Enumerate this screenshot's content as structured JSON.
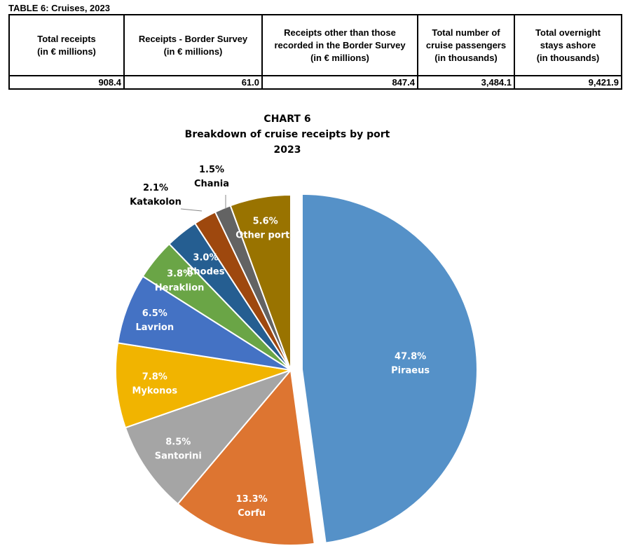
{
  "table": {
    "title": "TABLE 6: Cruises, 2023",
    "columns": [
      "Total receipts\n(in € millions)",
      "Receipts - Border Survey\n(in € millions)",
      "Receipts other than those\nrecorded in the Border Survey\n(in € millions)",
      "Total number of\ncruise passengers\n(in thousands)",
      "Total overnight\nstays ashore\n(in thousands)"
    ],
    "values": [
      "908.4",
      "61.0",
      "847.4",
      "3,484.1",
      "9,421.9"
    ]
  },
  "chart_data": {
    "type": "pie",
    "title": "CHART 6",
    "subtitle": "Breakdown of cruise receipts by port",
    "year": "2023",
    "slices": [
      {
        "label": "Piraeus",
        "value": 47.8,
        "pct": "47.8%",
        "color": "#5591c8"
      },
      {
        "label": "Corfu",
        "value": 13.3,
        "pct": "13.3%",
        "color": "#dd7531"
      },
      {
        "label": "Santorini",
        "value": 8.5,
        "pct": "8.5%",
        "color": "#a5a5a5"
      },
      {
        "label": "Mykonos",
        "value": 7.8,
        "pct": "7.8%",
        "color": "#f1b400"
      },
      {
        "label": "Lavrion",
        "value": 6.5,
        "pct": "6.5%",
        "color": "#4472c4"
      },
      {
        "label": "Heraklion",
        "value": 3.8,
        "pct": "3.8%",
        "color": "#6aa546"
      },
      {
        "label": "Rhodes",
        "value": 3.0,
        "pct": "3.0%",
        "color": "#255e91"
      },
      {
        "label": "Katakolon",
        "value": 2.1,
        "pct": "2.1%",
        "color": "#9e480e"
      },
      {
        "label": "Chania",
        "value": 1.5,
        "pct": "1.5%",
        "color": "#636363"
      },
      {
        "label": "Other ports",
        "value": 5.6,
        "pct": "5.6%",
        "color": "#997300"
      }
    ]
  }
}
